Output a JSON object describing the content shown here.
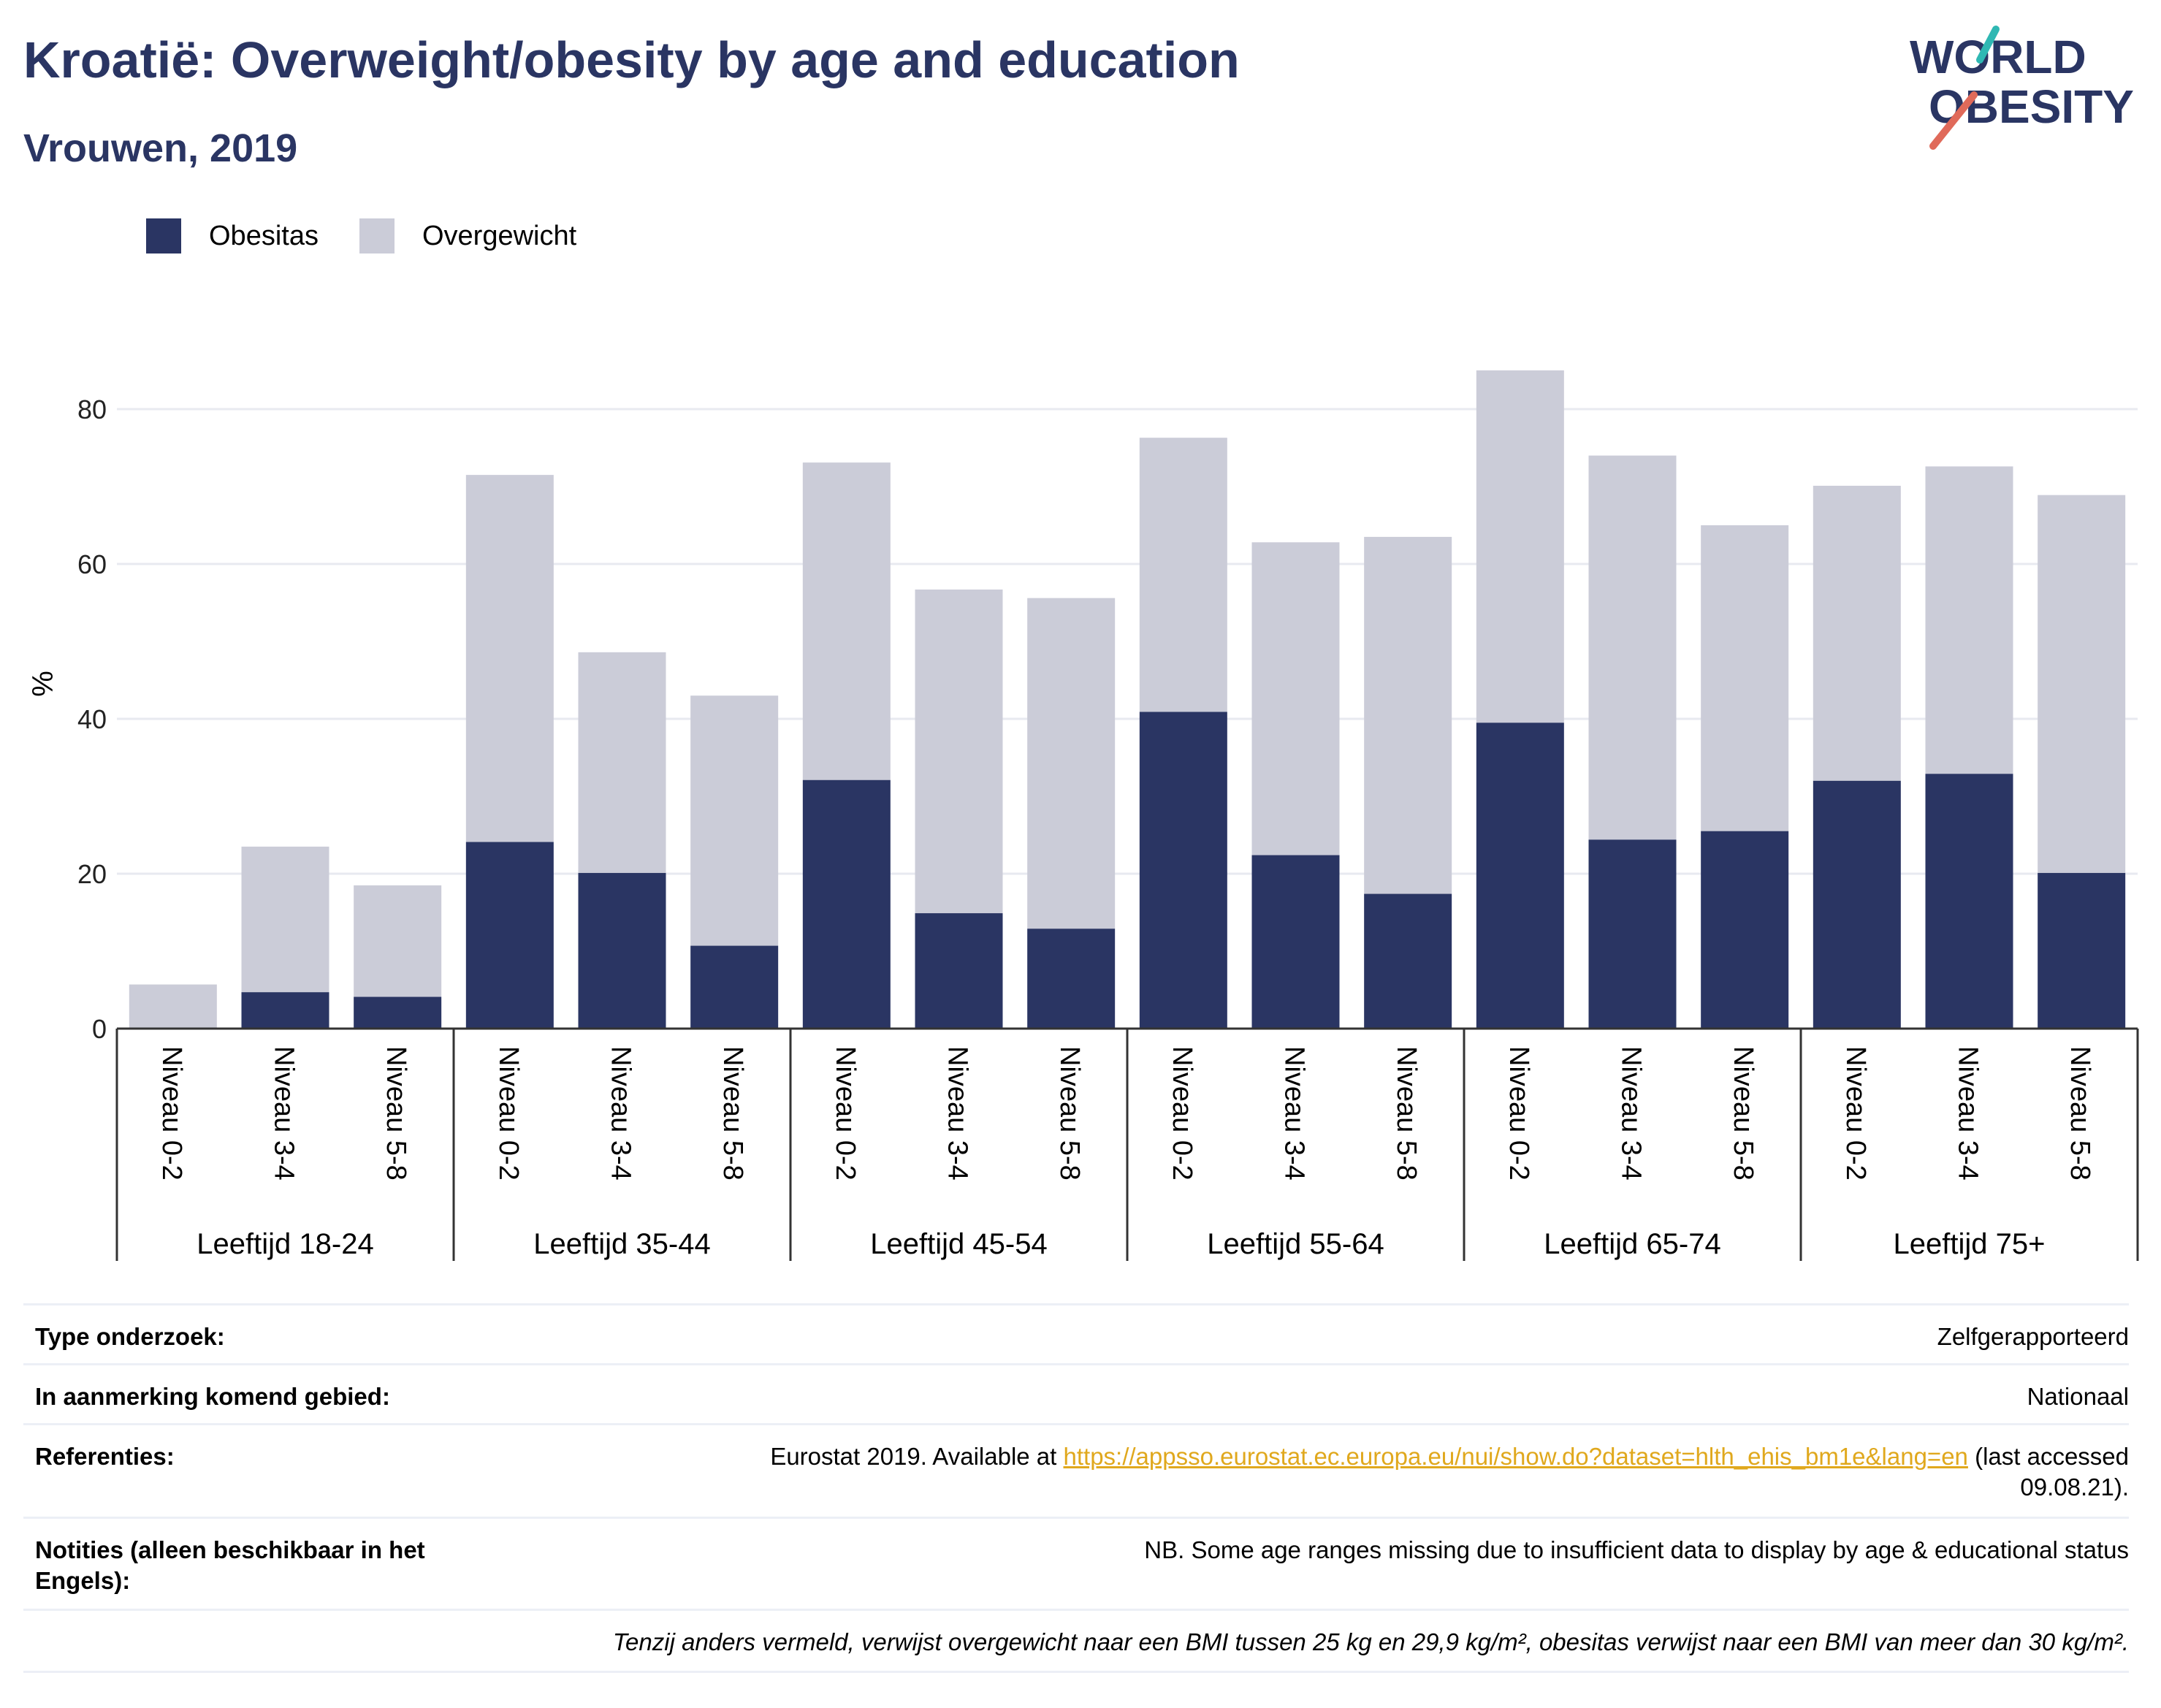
{
  "title": "Kroatië: Overweight/obesity by age and education",
  "subtitle": "Vrouwen, 2019",
  "logo": {
    "line1": "WORLD",
    "line2": "OBESITY"
  },
  "legend": [
    {
      "label": "Obesitas",
      "color": "#2a3563"
    },
    {
      "label": "Overgewicht",
      "color": "#cbccd8"
    }
  ],
  "chart_data": {
    "type": "bar",
    "stacked": true,
    "ylabel": "%",
    "ylim": [
      0,
      90
    ],
    "yticks": [
      0,
      20,
      40,
      60,
      80
    ],
    "grid": true,
    "legend_position": "top-left",
    "groups": [
      "Leeftijd 18-24",
      "Leeftijd 35-44",
      "Leeftijd 45-54",
      "Leeftijd 55-64",
      "Leeftijd 65-74",
      "Leeftijd 75+"
    ],
    "subcategories": [
      "Niveau 0-2",
      "Niveau 3-4",
      "Niveau 5-8"
    ],
    "series": [
      {
        "name": "Obesitas",
        "color": "#2a3563",
        "values": [
          0,
          4.7,
          4.1,
          24.1,
          20.1,
          10.7,
          32.1,
          14.9,
          12.9,
          40.9,
          22.4,
          17.4,
          39.5,
          24.4,
          25.5,
          32.0,
          32.9,
          20.1
        ]
      },
      {
        "name": "Overgewicht",
        "color": "#cbccd8",
        "values": [
          5.7,
          18.8,
          14.4,
          47.4,
          28.5,
          32.3,
          41.0,
          41.8,
          42.7,
          35.4,
          40.4,
          46.1,
          45.5,
          49.6,
          39.5,
          38.1,
          39.7,
          48.8
        ]
      }
    ]
  },
  "info": {
    "rows": [
      {
        "label": "Type onderzoek:",
        "value": "Zelfgerapporteerd"
      },
      {
        "label": "In aanmerking komend gebied:",
        "value": "Nationaal"
      },
      {
        "label": "Referenties:",
        "value_before": "Eurostat 2019. Available at ",
        "link": "https://appsso.eurostat.ec.europa.eu/nui/show.do?dataset=hlth_ehis_bm1e&lang=en",
        "value_after": " (last accessed 09.08.21)."
      },
      {
        "label": "Notities (alleen beschikbaar in het Engels):",
        "value": "NB. Some age ranges missing due to insufficient data to display by age & educational status"
      }
    ],
    "footnote": "Tenzij anders vermeld, verwijst overgewicht naar een BMI tussen 25 kg en 29,9 kg/m², obesitas verwijst naar een BMI van meer dan 30 kg/m²."
  }
}
